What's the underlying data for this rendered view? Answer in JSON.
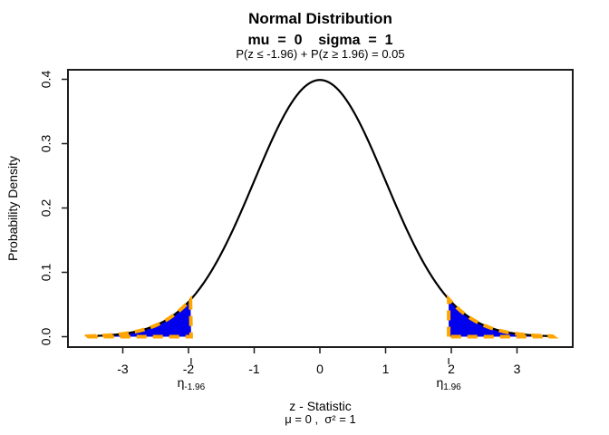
{
  "title": {
    "line1": "Normal Distribution",
    "line2": "mu  =  0    sigma  =  1",
    "line3": "P(z ≤ -1.96) + P(z ≥ 1.96) = 0.05"
  },
  "axes": {
    "y_label": "Probability Density",
    "x_label_line1": "z - Statistic",
    "x_label_line2": "μ = 0 ,  σ² = 1"
  },
  "chart_data": {
    "type": "area",
    "distribution": "normal",
    "mu": 0,
    "sigma": 1,
    "curve_x_range": [
      -3.55,
      3.55
    ],
    "x_ticks": [
      "-3",
      "-2",
      "-1",
      "0",
      "1",
      "2",
      "3"
    ],
    "x_tick_values": [
      -3,
      -2,
      -1,
      0,
      1,
      2,
      3
    ],
    "y_ticks": [
      "0.0",
      "0.1",
      "0.2",
      "0.3",
      "0.4"
    ],
    "y_tick_values": [
      0.0,
      0.1,
      0.2,
      0.3,
      0.4
    ],
    "xlim": [
      -3.85,
      3.85
    ],
    "ylim": [
      -0.016,
      0.415
    ],
    "peak_density": 0.3989,
    "grid": false,
    "shaded_regions": [
      {
        "from": -3.55,
        "to": -1.96,
        "probability": 0.025
      },
      {
        "from": 1.96,
        "to": 3.55,
        "probability": 0.025
      }
    ],
    "critical_markers": [
      {
        "z": -1.96,
        "symbol": "η",
        "subscript": "-1.96"
      },
      {
        "z": 1.96,
        "symbol": "η",
        "subscript": "1.96"
      }
    ],
    "total_tail_probability": 0.05,
    "colors": {
      "curve": "#000000",
      "fill": "#0000EE",
      "dash": "#FFA500",
      "axis": "#1c1c1c",
      "background": "#FFFFFF"
    }
  }
}
